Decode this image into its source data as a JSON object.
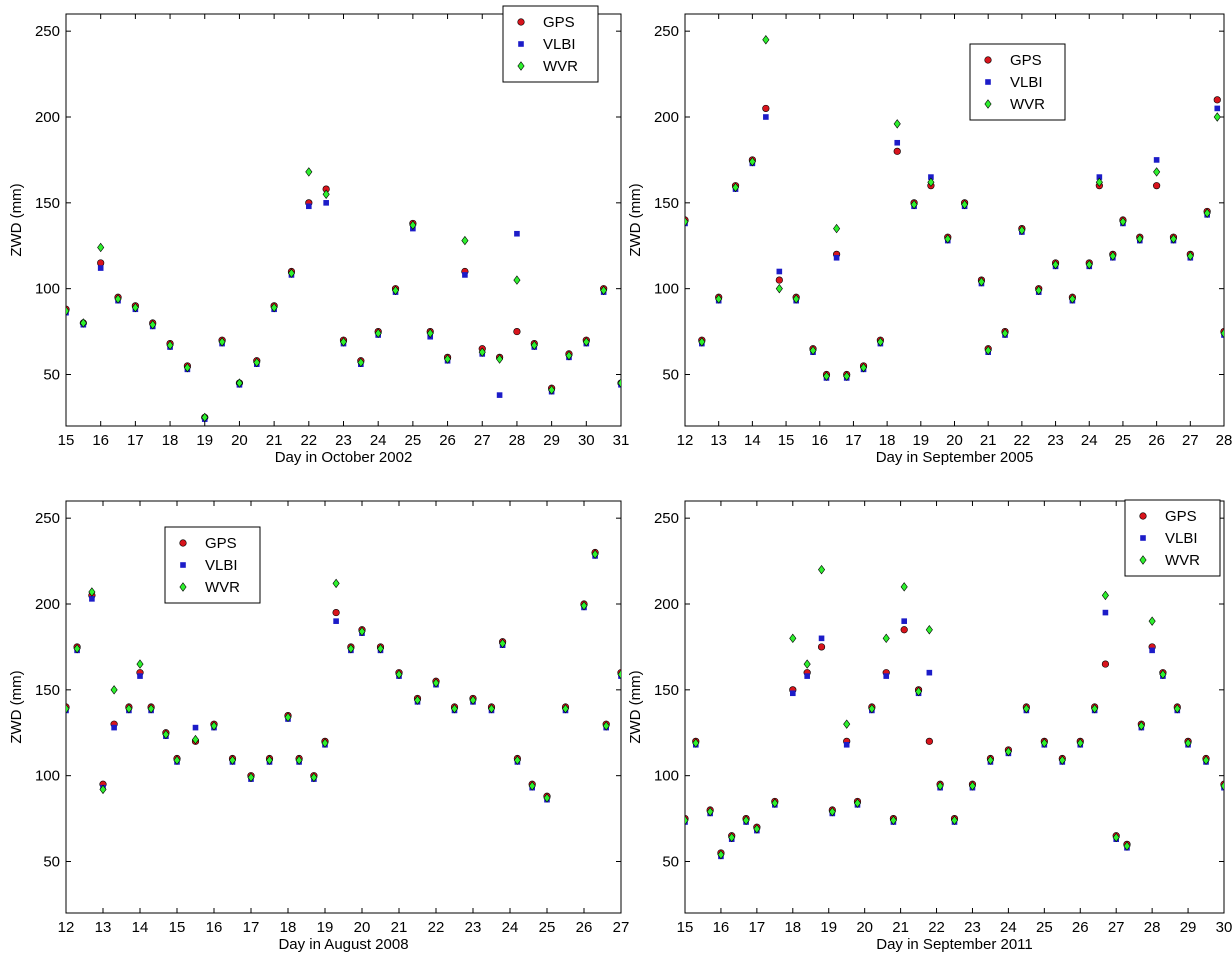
{
  "figure": {
    "ylabel": "ZWD (mm)",
    "legend_labels": [
      "GPS",
      "VLBI",
      "WVR"
    ],
    "series_colors": {
      "GPS": "#d8141c",
      "VLBI": "#1c1cc8",
      "WVR": "#2ef02e"
    }
  },
  "chart_data": [
    {
      "type": "scatter",
      "title": "",
      "xlabel": "Day in October 2002",
      "ylabel": "ZWD (mm)",
      "xlim": [
        15,
        31
      ],
      "ylim": [
        20,
        260
      ],
      "xticks": [
        15,
        16,
        17,
        18,
        19,
        20,
        21,
        22,
        23,
        24,
        25,
        26,
        27,
        28,
        29,
        30,
        31
      ],
      "yticks": [
        50,
        100,
        150,
        200,
        250
      ],
      "legend_position": "top-right",
      "series": [
        {
          "name": "GPS",
          "x": [
            15,
            15.5,
            16,
            16.5,
            17,
            17.5,
            18,
            18.5,
            19,
            19.5,
            20,
            20.5,
            21,
            21.5,
            22,
            22.5,
            23,
            23.5,
            24,
            24.5,
            25,
            25.5,
            26,
            26.5,
            27,
            27.5,
            28,
            28.5,
            29,
            29.5,
            30,
            30.5,
            31
          ],
          "y": [
            88,
            80,
            115,
            95,
            90,
            80,
            68,
            55,
            25,
            70,
            45,
            58,
            90,
            110,
            150,
            158,
            70,
            58,
            75,
            100,
            138,
            75,
            60,
            110,
            65,
            60,
            75,
            68,
            42,
            62,
            70,
            100,
            45
          ]
        },
        {
          "name": "VLBI",
          "x": [
            15,
            15.5,
            16,
            16.5,
            17,
            17.5,
            18,
            18.5,
            19,
            19.5,
            20,
            20.5,
            21,
            21.5,
            22,
            22.5,
            23,
            23.5,
            24,
            24.5,
            25,
            25.5,
            26,
            26.5,
            27,
            27.5,
            28,
            28.5,
            29,
            29.5,
            30,
            30.5,
            31
          ],
          "y": [
            86,
            79,
            112,
            93,
            88,
            78,
            66,
            53,
            24,
            68,
            44,
            56,
            88,
            108,
            148,
            150,
            68,
            56,
            73,
            98,
            135,
            72,
            58,
            108,
            62,
            38,
            132,
            66,
            40,
            60,
            68,
            98,
            44
          ]
        },
        {
          "name": "WVR",
          "x": [
            15,
            15.5,
            16,
            16.5,
            17,
            17.5,
            18,
            18.5,
            19,
            19.5,
            20,
            20.5,
            21,
            21.5,
            22,
            22.5,
            23,
            23.5,
            24,
            24.5,
            25,
            25.5,
            26,
            26.5,
            27,
            27.5,
            28,
            28.5,
            29,
            29.5,
            30,
            30.5,
            31
          ],
          "y": [
            87,
            80,
            124,
            94,
            89,
            79,
            67,
            54,
            25,
            69,
            45,
            57,
            89,
            109,
            168,
            155,
            69,
            57,
            74,
            99,
            137,
            74,
            59,
            128,
            63,
            59,
            105,
            67,
            41,
            61,
            69,
            99,
            45
          ]
        }
      ]
    },
    {
      "type": "scatter",
      "title": "",
      "xlabel": "Day in September 2005",
      "ylabel": "ZWD (mm)",
      "xlim": [
        12,
        28
      ],
      "ylim": [
        20,
        260
      ],
      "xticks": [
        12,
        13,
        14,
        15,
        16,
        17,
        18,
        19,
        20,
        21,
        22,
        23,
        24,
        25,
        26,
        27,
        28
      ],
      "yticks": [
        50,
        100,
        150,
        200,
        250
      ],
      "legend_position": "top-center-right",
      "series": [
        {
          "name": "GPS",
          "x": [
            12,
            12.5,
            13,
            13.5,
            14,
            14.4,
            14.8,
            15.3,
            15.8,
            16.2,
            16.5,
            16.8,
            17.3,
            17.8,
            18.3,
            18.8,
            19.3,
            19.8,
            20.3,
            20.8,
            21,
            21.5,
            22,
            22.5,
            23,
            23.5,
            24,
            24.3,
            24.7,
            25,
            25.5,
            26,
            26.5,
            27,
            27.5,
            27.8,
            28
          ],
          "y": [
            140,
            70,
            95,
            160,
            175,
            205,
            105,
            95,
            65,
            50,
            120,
            50,
            55,
            70,
            180,
            150,
            160,
            130,
            150,
            105,
            65,
            75,
            135,
            100,
            115,
            95,
            115,
            160,
            120,
            140,
            130,
            160,
            130,
            120,
            145,
            210,
            75
          ]
        },
        {
          "name": "VLBI",
          "x": [
            12,
            12.5,
            13,
            13.5,
            14,
            14.4,
            14.8,
            15.3,
            15.8,
            16.2,
            16.5,
            16.8,
            17.3,
            17.8,
            18.3,
            18.8,
            19.3,
            19.8,
            20.3,
            20.8,
            21,
            21.5,
            22,
            22.5,
            23,
            23.5,
            24,
            24.3,
            24.7,
            25,
            25.5,
            26,
            26.5,
            27,
            27.5,
            27.8,
            28
          ],
          "y": [
            138,
            68,
            93,
            158,
            173,
            200,
            110,
            93,
            63,
            48,
            118,
            48,
            53,
            68,
            185,
            148,
            165,
            128,
            148,
            103,
            63,
            73,
            133,
            98,
            113,
            93,
            113,
            165,
            118,
            138,
            128,
            175,
            128,
            118,
            143,
            205,
            73
          ]
        },
        {
          "name": "WVR",
          "x": [
            12,
            12.5,
            13,
            13.5,
            14,
            14.4,
            14.8,
            15.3,
            15.8,
            16.2,
            16.5,
            16.8,
            17.3,
            17.8,
            18.3,
            18.8,
            19.3,
            19.8,
            20.3,
            20.8,
            21,
            21.5,
            22,
            22.5,
            23,
            23.5,
            24,
            24.3,
            24.7,
            25,
            25.5,
            26,
            26.5,
            27,
            27.5,
            27.8,
            28
          ],
          "y": [
            139,
            69,
            94,
            159,
            174,
            245,
            100,
            94,
            64,
            49,
            135,
            49,
            54,
            69,
            196,
            149,
            162,
            129,
            149,
            104,
            64,
            74,
            134,
            99,
            114,
            94,
            114,
            162,
            119,
            139,
            129,
            168,
            129,
            119,
            144,
            200,
            74
          ]
        }
      ]
    },
    {
      "type": "scatter",
      "title": "",
      "xlabel": "Day in August 2008",
      "ylabel": "ZWD (mm)",
      "xlim": [
        12,
        27
      ],
      "ylim": [
        20,
        260
      ],
      "xticks": [
        12,
        13,
        14,
        15,
        16,
        17,
        18,
        19,
        20,
        21,
        22,
        23,
        24,
        25,
        26,
        27
      ],
      "yticks": [
        50,
        100,
        150,
        200,
        250
      ],
      "legend_position": "top-left",
      "series": [
        {
          "name": "GPS",
          "x": [
            12,
            12.3,
            12.7,
            13,
            13.3,
            13.7,
            14,
            14.3,
            14.7,
            15,
            15.5,
            16,
            16.5,
            17,
            17.5,
            18,
            18.3,
            18.7,
            19,
            19.3,
            19.7,
            20,
            20.5,
            21,
            21.5,
            22,
            22.5,
            23,
            23.5,
            23.8,
            24.2,
            24.6,
            25,
            25.5,
            26,
            26.3,
            26.6,
            27
          ],
          "y": [
            140,
            175,
            205,
            95,
            130,
            140,
            160,
            140,
            125,
            110,
            120,
            130,
            110,
            100,
            110,
            135,
            110,
            100,
            120,
            195,
            175,
            185,
            175,
            160,
            145,
            155,
            140,
            145,
            140,
            178,
            110,
            95,
            88,
            140,
            200,
            230,
            130,
            160
          ]
        },
        {
          "name": "VLBI",
          "x": [
            12,
            12.3,
            12.7,
            13,
            13.3,
            13.7,
            14,
            14.3,
            14.7,
            15,
            15.5,
            16,
            16.5,
            17,
            17.5,
            18,
            18.3,
            18.7,
            19,
            19.3,
            19.7,
            20,
            20.5,
            21,
            21.5,
            22,
            22.5,
            23,
            23.5,
            23.8,
            24.2,
            24.6,
            25,
            25.5,
            26,
            26.3,
            26.6,
            27
          ],
          "y": [
            138,
            173,
            203,
            93,
            128,
            138,
            158,
            138,
            123,
            108,
            128,
            128,
            108,
            98,
            108,
            133,
            108,
            98,
            118,
            190,
            173,
            183,
            173,
            158,
            143,
            153,
            138,
            143,
            138,
            176,
            108,
            93,
            86,
            138,
            198,
            228,
            128,
            158
          ]
        },
        {
          "name": "WVR",
          "x": [
            12,
            12.3,
            12.7,
            13,
            13.3,
            13.7,
            14,
            14.3,
            14.7,
            15,
            15.5,
            16,
            16.5,
            17,
            17.5,
            18,
            18.3,
            18.7,
            19,
            19.3,
            19.7,
            20,
            20.5,
            21,
            21.5,
            22,
            22.5,
            23,
            23.5,
            23.8,
            24.2,
            24.6,
            25,
            25.5,
            26,
            26.3,
            26.6,
            27
          ],
          "y": [
            139,
            174,
            207,
            92,
            150,
            139,
            165,
            139,
            124,
            109,
            121,
            129,
            109,
            99,
            109,
            134,
            109,
            99,
            119,
            212,
            174,
            184,
            174,
            159,
            144,
            154,
            139,
            144,
            139,
            177,
            109,
            94,
            87,
            139,
            199,
            229,
            129,
            159
          ]
        }
      ]
    },
    {
      "type": "scatter",
      "title": "",
      "xlabel": "Day in September 2011",
      "ylabel": "ZWD (mm)",
      "xlim": [
        15,
        30
      ],
      "ylim": [
        20,
        260
      ],
      "xticks": [
        15,
        16,
        17,
        18,
        19,
        20,
        21,
        22,
        23,
        24,
        25,
        26,
        27,
        28,
        29,
        30
      ],
      "yticks": [
        50,
        100,
        150,
        200,
        250
      ],
      "legend_position": "top-right",
      "series": [
        {
          "name": "GPS",
          "x": [
            15,
            15.3,
            15.7,
            16,
            16.3,
            16.7,
            17,
            17.5,
            18,
            18.4,
            18.8,
            19.1,
            19.5,
            19.8,
            20.2,
            20.6,
            20.8,
            21.1,
            21.5,
            21.8,
            22.1,
            22.5,
            23,
            23.5,
            24,
            24.5,
            25,
            25.5,
            26,
            26.4,
            26.7,
            27,
            27.3,
            27.7,
            28,
            28.3,
            28.7,
            29,
            29.5,
            30
          ],
          "y": [
            75,
            120,
            80,
            55,
            65,
            75,
            70,
            85,
            150,
            160,
            175,
            80,
            120,
            85,
            140,
            160,
            75,
            185,
            150,
            120,
            95,
            75,
            95,
            110,
            115,
            140,
            120,
            110,
            120,
            140,
            165,
            65,
            60,
            130,
            175,
            160,
            140,
            120,
            110,
            95
          ]
        },
        {
          "name": "VLBI",
          "x": [
            15,
            15.3,
            15.7,
            16,
            16.3,
            16.7,
            17,
            17.5,
            18,
            18.4,
            18.8,
            19.1,
            19.5,
            19.8,
            20.2,
            20.6,
            20.8,
            21.1,
            21.5,
            21.8,
            22.1,
            22.5,
            23,
            23.5,
            24,
            24.5,
            25,
            25.5,
            26,
            26.4,
            26.7,
            27,
            27.3,
            27.7,
            28,
            28.3,
            28.7,
            29,
            29.5,
            30
          ],
          "y": [
            73,
            118,
            78,
            53,
            63,
            73,
            68,
            83,
            148,
            158,
            180,
            78,
            118,
            83,
            138,
            158,
            73,
            190,
            148,
            160,
            93,
            73,
            93,
            108,
            113,
            138,
            118,
            108,
            118,
            138,
            195,
            63,
            58,
            128,
            173,
            158,
            138,
            118,
            108,
            93
          ]
        },
        {
          "name": "WVR",
          "x": [
            15,
            15.3,
            15.7,
            16,
            16.3,
            16.7,
            17,
            17.5,
            18,
            18.4,
            18.8,
            19.1,
            19.5,
            19.8,
            20.2,
            20.6,
            20.8,
            21.1,
            21.5,
            21.8,
            22.1,
            22.5,
            23,
            23.5,
            24,
            24.5,
            25,
            25.5,
            26,
            26.4,
            26.7,
            27,
            27.3,
            27.7,
            28,
            28.3,
            28.7,
            29,
            29.5,
            30
          ],
          "y": [
            74,
            119,
            79,
            54,
            64,
            74,
            69,
            84,
            180,
            165,
            220,
            79,
            130,
            84,
            139,
            180,
            74,
            210,
            149,
            185,
            94,
            74,
            94,
            109,
            114,
            139,
            119,
            109,
            119,
            139,
            205,
            64,
            59,
            129,
            190,
            159,
            139,
            119,
            109,
            94
          ]
        }
      ]
    }
  ]
}
